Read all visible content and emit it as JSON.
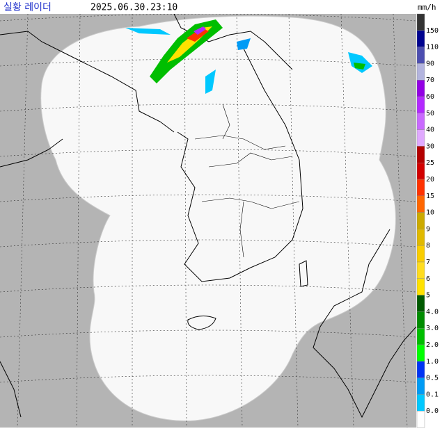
{
  "header": {
    "title": "실황 레이더",
    "time": "2025.06.30.23:10",
    "unit": "mm/h"
  },
  "legend": {
    "labels": [
      "150",
      "110",
      "90",
      "70",
      "60",
      "50",
      "40",
      "30",
      "25",
      "20",
      "15",
      "10",
      "9",
      "8",
      "7",
      "6",
      "5",
      "4.0",
      "3.0",
      "2.0",
      "1.0",
      "0.5",
      "0.1",
      "0.0"
    ],
    "colors": [
      "#333333",
      "#000390",
      "#4c4eb1",
      "#b3b4de",
      "#9300e4",
      "#b329ff",
      "#c969ff",
      "#e0a9ff",
      "#b40000",
      "#d20000",
      "#ff3200",
      "#ff6600",
      "#ccaa00",
      "#e0b900",
      "#f9cd00",
      "#ffdc1f",
      "#ffe100",
      "#005a00",
      "#008c00",
      "#00be00",
      "#00ff00",
      "#0033f5",
      "#009bf5",
      "#00c8ff",
      "#ffffff"
    ]
  }
}
